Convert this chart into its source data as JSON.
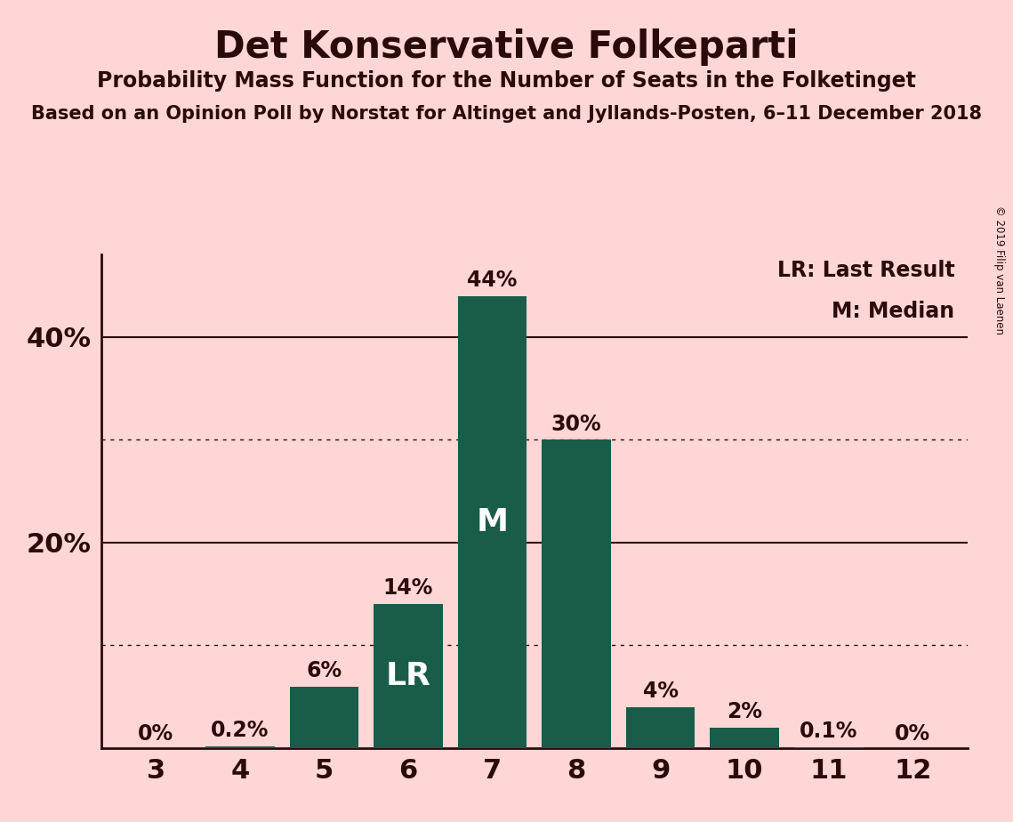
{
  "title": "Det Konservative Folkeparti",
  "subtitle": "Probability Mass Function for the Number of Seats in the Folketinget",
  "source": "Based on an Opinion Poll by Norstat for Altinget and Jyllands-Posten, 6–11 December 2018",
  "copyright": "© 2019 Filip van Laenen",
  "seats": [
    3,
    4,
    5,
    6,
    7,
    8,
    9,
    10,
    11,
    12
  ],
  "probabilities": [
    0.0,
    0.2,
    6.0,
    14.0,
    44.0,
    30.0,
    4.0,
    2.0,
    0.1,
    0.0
  ],
  "bar_color": "#1a5c4a",
  "background_color": "#ffd6d6",
  "text_color": "#2b0a0a",
  "bar_labels": [
    "0%",
    "0.2%",
    "6%",
    "14%",
    "44%",
    "30%",
    "4%",
    "2%",
    "0.1%",
    "0%"
  ],
  "inside_labels": {
    "6": "LR",
    "7": "M"
  },
  "ytick_positions": [
    20,
    40
  ],
  "ytick_labels": [
    "20%",
    "40%"
  ],
  "dotted_lines": [
    10,
    30
  ],
  "solid_lines": [
    20,
    40
  ],
  "legend_lr": "LR: Last Result",
  "legend_m": "M: Median",
  "ylim": [
    0,
    48
  ],
  "xlim": [
    2.35,
    12.65
  ]
}
